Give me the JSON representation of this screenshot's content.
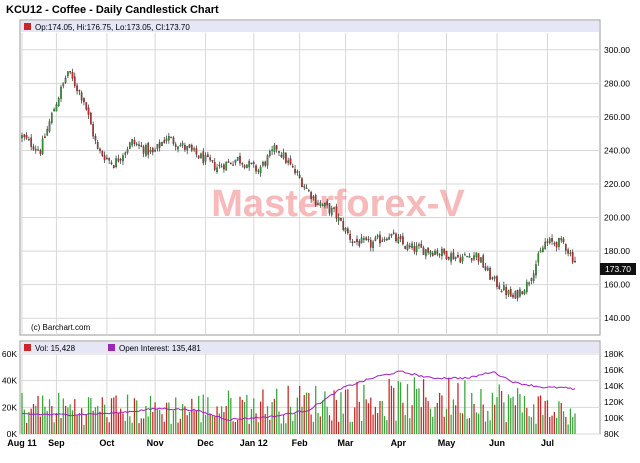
{
  "chart_data": [
    {
      "type": "candlestick",
      "title": "KCU12 - Coffee - Daily Candlestick Chart",
      "ohlc_readout": "Op:174.05, Hi:176.75, Lo:173.05, Cl:173.70",
      "last_price_label": "173.70",
      "credit": "(c) Barchart.com",
      "watermark": "Masterforex-V",
      "y_axis": {
        "position": "right",
        "range": [
          130,
          310
        ],
        "ticks": [
          140,
          160,
          180,
          200,
          220,
          240,
          260,
          280,
          300
        ],
        "tick_labels": [
          "140.00",
          "160.00",
          "180.00",
          "200.00",
          "220.00",
          "240.00",
          "260.00",
          "280.00",
          "300.00"
        ]
      },
      "x_axis": {
        "labels": [
          "Aug 11",
          "Sep",
          "Oct",
          "Nov",
          "Dec",
          "Jan 12",
          "Feb",
          "Mar",
          "Apr",
          "May",
          "Jun",
          "Jul"
        ],
        "label_day_index": [
          0,
          15,
          37,
          58,
          80,
          101,
          121,
          141,
          164,
          185,
          207,
          229
        ]
      },
      "trading_days": 242,
      "grid": true,
      "colors": {
        "up": "#2e9e2e",
        "down": "#c62828",
        "wick": "#2b2b2b"
      },
      "approx_close_path": [
        {
          "day": 0,
          "close": 248
        },
        {
          "day": 8,
          "close": 240
        },
        {
          "day": 14,
          "close": 265
        },
        {
          "day": 20,
          "close": 287
        },
        {
          "day": 27,
          "close": 270
        },
        {
          "day": 33,
          "close": 240
        },
        {
          "day": 40,
          "close": 232
        },
        {
          "day": 48,
          "close": 245
        },
        {
          "day": 57,
          "close": 238
        },
        {
          "day": 63,
          "close": 248
        },
        {
          "day": 73,
          "close": 240
        },
        {
          "day": 85,
          "close": 230
        },
        {
          "day": 94,
          "close": 235
        },
        {
          "day": 103,
          "close": 228
        },
        {
          "day": 111,
          "close": 242
        },
        {
          "day": 120,
          "close": 225
        },
        {
          "day": 128,
          "close": 210
        },
        {
          "day": 136,
          "close": 203
        },
        {
          "day": 144,
          "close": 186
        },
        {
          "day": 152,
          "close": 184
        },
        {
          "day": 160,
          "close": 190
        },
        {
          "day": 168,
          "close": 182
        },
        {
          "day": 180,
          "close": 180
        },
        {
          "day": 191,
          "close": 176
        },
        {
          "day": 198,
          "close": 178
        },
        {
          "day": 205,
          "close": 163
        },
        {
          "day": 214,
          "close": 152
        },
        {
          "day": 220,
          "close": 160
        },
        {
          "day": 228,
          "close": 185
        },
        {
          "day": 236,
          "close": 185
        },
        {
          "day": 241,
          "close": 173.7
        }
      ]
    },
    {
      "type": "bar",
      "series": [
        {
          "name": "Vol: 15,428",
          "color": "#c62828"
        },
        {
          "name": "Open Interest: 135,481",
          "color": "#9c27b0"
        }
      ],
      "left_axis": {
        "range": [
          0,
          60000
        ],
        "ticks": [
          0,
          20000,
          40000,
          60000
        ],
        "tick_labels": [
          "0K",
          "20K",
          "40K",
          "60K"
        ]
      },
      "right_axis": {
        "range": [
          80000,
          180000
        ],
        "ticks": [
          80000,
          100000,
          120000,
          140000,
          160000,
          180000
        ],
        "tick_labels": [
          "80K",
          "100K",
          "120K",
          "140K",
          "160K",
          "180K"
        ]
      },
      "approx_volume_level": [
        {
          "day": 0,
          "vol": 20000
        },
        {
          "day": 60,
          "vol": 18000
        },
        {
          "day": 110,
          "vol": 22000
        },
        {
          "day": 150,
          "vol": 25000
        },
        {
          "day": 200,
          "vol": 27000
        },
        {
          "day": 241,
          "vol": 15428
        }
      ],
      "approx_open_interest": [
        {
          "day": 0,
          "oi": 105000
        },
        {
          "day": 20,
          "oi": 104000
        },
        {
          "day": 40,
          "oi": 106000
        },
        {
          "day": 60,
          "oi": 112000
        },
        {
          "day": 75,
          "oi": 110000
        },
        {
          "day": 90,
          "oi": 98000
        },
        {
          "day": 110,
          "oi": 102000
        },
        {
          "day": 125,
          "oi": 110000
        },
        {
          "day": 140,
          "oi": 138000
        },
        {
          "day": 155,
          "oi": 152000
        },
        {
          "day": 165,
          "oi": 158000
        },
        {
          "day": 178,
          "oi": 150000
        },
        {
          "day": 195,
          "oi": 150000
        },
        {
          "day": 205,
          "oi": 158000
        },
        {
          "day": 215,
          "oi": 144000
        },
        {
          "day": 228,
          "oi": 138000
        },
        {
          "day": 236,
          "oi": 138000
        },
        {
          "day": 241,
          "oi": 135481
        }
      ]
    }
  ]
}
